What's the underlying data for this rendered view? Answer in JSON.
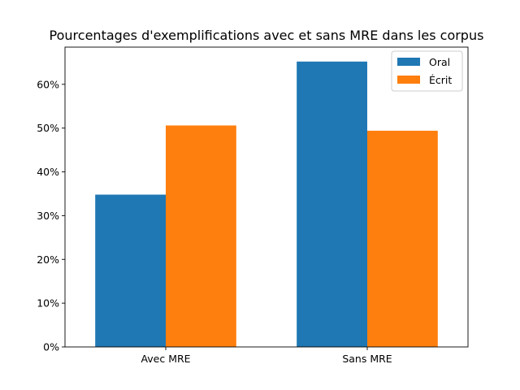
{
  "chart_data": {
    "type": "bar",
    "title": "Pourcentages d'exemplifications avec et sans MRE dans les corpus",
    "xlabel": "",
    "ylabel": "",
    "categories": [
      "Avec MRE",
      "Sans MRE"
    ],
    "series": [
      {
        "name": "Oral",
        "values": [
          0.348,
          0.652
        ],
        "color": "#1f77b4"
      },
      {
        "name": "Écrit",
        "values": [
          0.506,
          0.494
        ],
        "color": "#ff7f0e"
      }
    ],
    "ylim": [
      0,
      0.685
    ],
    "yticks": [
      0,
      0.1,
      0.2,
      0.3,
      0.4,
      0.5,
      0.6
    ],
    "ytick_labels": [
      "0%",
      "10%",
      "20%",
      "30%",
      "40%",
      "50%",
      "60%"
    ],
    "grid": false,
    "legend_position": "top-right"
  }
}
